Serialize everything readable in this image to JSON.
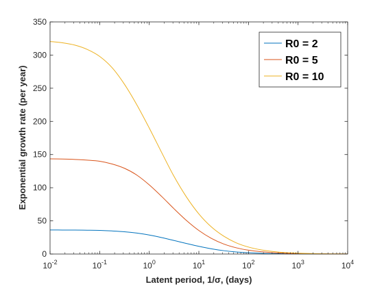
{
  "chart_data": {
    "type": "line",
    "title": "",
    "xlabel": "Latent period, 1/σ, (days)",
    "ylabel": "Exponential growth rate (per year)",
    "xscale": "log",
    "xlim": [
      0.01,
      10000
    ],
    "ylim": [
      0,
      350
    ],
    "x_ticks": [
      0.01,
      0.1,
      1,
      10,
      100,
      1000,
      10000
    ],
    "x_tick_labels": [
      {
        "base": "10",
        "exp": "-2"
      },
      {
        "base": "10",
        "exp": "-1"
      },
      {
        "base": "10",
        "exp": "0"
      },
      {
        "base": "10",
        "exp": "1"
      },
      {
        "base": "10",
        "exp": "2"
      },
      {
        "base": "10",
        "exp": "3"
      },
      {
        "base": "10",
        "exp": "4"
      }
    ],
    "y_ticks": [
      0,
      50,
      100,
      150,
      200,
      250,
      300,
      350
    ],
    "y_tick_labels": [
      "0",
      "50",
      "100",
      "150",
      "200",
      "250",
      "300",
      "350"
    ],
    "grid": false,
    "legend_position": "top-right",
    "x": [
      0.01,
      0.0178,
      0.0316,
      0.0562,
      0.1,
      0.178,
      0.316,
      0.562,
      1,
      1.78,
      3.16,
      5.62,
      10,
      17.8,
      31.6,
      56.2,
      100,
      178,
      316,
      562,
      1000,
      1780,
      3160,
      5620,
      10000
    ],
    "series": [
      {
        "name": "R0 = 2",
        "color": "#0072bd",
        "values": [
          36.3,
          36.2,
          36.1,
          35.9,
          35.6,
          34.8,
          33.6,
          31.6,
          28.6,
          24.8,
          20.4,
          15.9,
          11.6,
          7.9,
          5.1,
          3.1,
          1.9,
          1.1,
          0.65,
          0.37,
          0.21,
          0.12,
          0.07,
          0.04,
          0.02
        ]
      },
      {
        "name": "R0 = 5",
        "color": "#d95319",
        "values": [
          143.5,
          143.2,
          142.6,
          141.6,
          139.9,
          135.8,
          129.3,
          119.0,
          104.3,
          86.8,
          68.2,
          50.6,
          35.5,
          23.7,
          15.2,
          9.5,
          5.8,
          3.5,
          2.1,
          1.2,
          0.71,
          0.41,
          0.24,
          0.14,
          0.08
        ]
      },
      {
        "name": "R0 = 10",
        "color": "#edb120",
        "values": [
          320.5,
          318.5,
          315.0,
          308.5,
          298.0,
          281.0,
          256.0,
          225.0,
          190.0,
          153.0,
          117.0,
          86.0,
          60.5,
          41.0,
          27.0,
          17.0,
          10.5,
          6.3,
          3.8,
          2.2,
          1.3,
          0.75,
          0.43,
          0.25,
          0.14
        ]
      }
    ]
  }
}
